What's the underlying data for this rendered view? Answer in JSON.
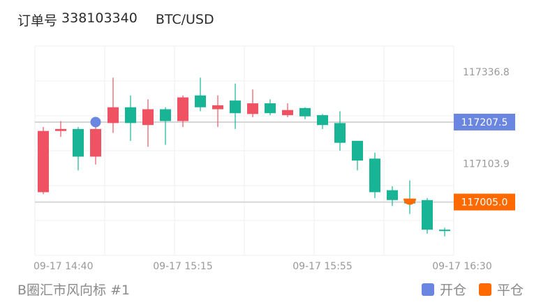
{
  "header": {
    "order_label": "订单号",
    "order_number": "338103340",
    "pair": "BTC/USD"
  },
  "footer": {
    "source": "B圈汇市风向标 #1"
  },
  "legend": [
    {
      "label": "开仓",
      "color": "#6b86e0"
    },
    {
      "label": "平仓",
      "color": "#ff6a00"
    }
  ],
  "colors": {
    "up": "#17b596",
    "down": "#ef5363",
    "open_marker": "#6b86e0",
    "close_marker": "#ff6a00",
    "grid": "#efefef"
  },
  "chart_data": {
    "type": "candlestick",
    "ylim": [
      116870,
      117400
    ],
    "y_ticks": [
      {
        "label": "117336.8",
        "value": 117336.8
      },
      {
        "label": "117103.9",
        "value": 117103.9
      }
    ],
    "x_ticks": [
      {
        "label": "09-17 14:40",
        "index": 0
      },
      {
        "label": "09-17 15:15",
        "index": 8
      },
      {
        "label": "09-17 15:55",
        "index": 16
      },
      {
        "label": "09-17 16:30",
        "index": 24
      }
    ],
    "candles": [
      {
        "o": 117185,
        "h": 117195,
        "l": 117025,
        "c": 117030
      },
      {
        "o": 117190,
        "h": 117210,
        "l": 117170,
        "c": 117185
      },
      {
        "o": 117120,
        "h": 117195,
        "l": 117085,
        "c": 117190
      },
      {
        "o": 117190,
        "h": 117205,
        "l": 117100,
        "c": 117120
      },
      {
        "o": 117245,
        "h": 117320,
        "l": 117180,
        "c": 117205
      },
      {
        "o": 117205,
        "h": 117275,
        "l": 117160,
        "c": 117245
      },
      {
        "o": 117240,
        "h": 117265,
        "l": 117145,
        "c": 117200
      },
      {
        "o": 117210,
        "h": 117245,
        "l": 117150,
        "c": 117240
      },
      {
        "o": 117270,
        "h": 117275,
        "l": 117195,
        "c": 117210
      },
      {
        "o": 117245,
        "h": 117320,
        "l": 117235,
        "c": 117275
      },
      {
        "o": 117250,
        "h": 117275,
        "l": 117195,
        "c": 117240
      },
      {
        "o": 117230,
        "h": 117305,
        "l": 117190,
        "c": 117262
      },
      {
        "o": 117255,
        "h": 117290,
        "l": 117220,
        "c": 117228
      },
      {
        "o": 117230,
        "h": 117265,
        "l": 117225,
        "c": 117255
      },
      {
        "o": 117238,
        "h": 117255,
        "l": 117220,
        "c": 117225
      },
      {
        "o": 117222,
        "h": 117245,
        "l": 117215,
        "c": 117243
      },
      {
        "o": 117200,
        "h": 117228,
        "l": 117190,
        "c": 117225
      },
      {
        "o": 117155,
        "h": 117235,
        "l": 117135,
        "c": 117205
      },
      {
        "o": 117110,
        "h": 117160,
        "l": 117085,
        "c": 117160
      },
      {
        "o": 117030,
        "h": 117130,
        "l": 117015,
        "c": 117115
      },
      {
        "o": 117010,
        "h": 117045,
        "l": 116995,
        "c": 117035
      },
      {
        "o": 117005,
        "h": 117060,
        "l": 116975,
        "c": 117005
      },
      {
        "o": 116935,
        "h": 117015,
        "l": 116925,
        "c": 117010
      },
      {
        "o": 116935,
        "h": 116940,
        "l": 116918,
        "c": 116935
      }
    ],
    "markers": [
      {
        "type": "open",
        "index": 3,
        "price": 117207.5,
        "label": "117207.5"
      },
      {
        "type": "close",
        "index": 21,
        "price": 117005.0,
        "label": "117005.0"
      }
    ],
    "grid": true
  }
}
